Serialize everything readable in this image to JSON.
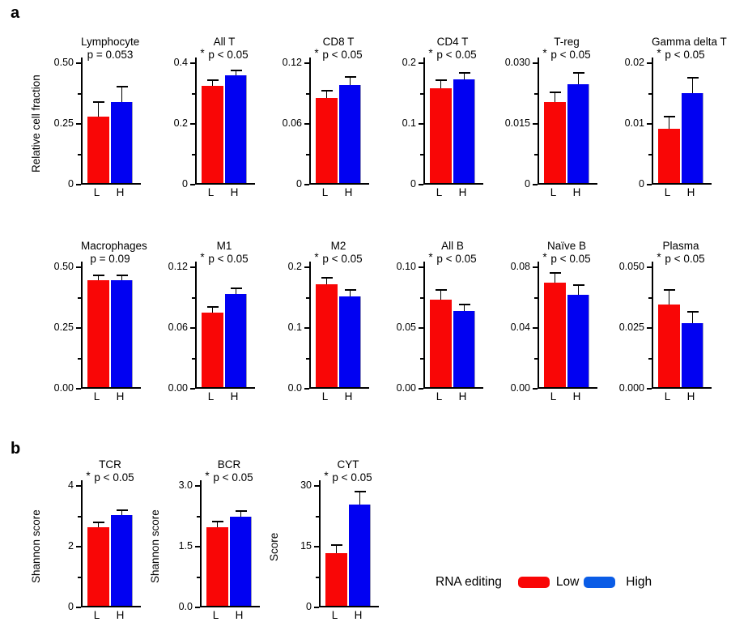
{
  "figure": {
    "panel_a_label": "a",
    "panel_b_label": "b"
  },
  "style": {
    "low_bar_color": "#f90606",
    "high_bar_color": "#0101f2",
    "legend_low_color": "#f90606",
    "legend_high_color": "#0a5ce6",
    "axis_color": "#000000"
  },
  "legend": {
    "title": "RNA editing",
    "items": [
      {
        "label": "Low",
        "color": "#f90606"
      },
      {
        "label": "High",
        "color": "#0a5ce6"
      }
    ]
  },
  "chart_data": [
    {
      "panel": "a",
      "row": 1,
      "type": "bar",
      "title": "Lymphocyte",
      "sig_label": "p = 0.053",
      "sig_star": false,
      "ylabel": "Relative cell fraction",
      "ylim": [
        0,
        0.5
      ],
      "ytick_labels": [
        "0",
        "0.25",
        "0.50"
      ],
      "categories": [
        "L",
        "H"
      ],
      "group_names": [
        "Low",
        "High"
      ],
      "values": [
        0.275,
        0.335
      ],
      "errors": [
        0.06,
        0.062
      ]
    },
    {
      "panel": "a",
      "row": 1,
      "type": "bar",
      "title": "All T",
      "sig_label": "p < 0.05",
      "sig_star": true,
      "ylabel": "",
      "ylim": [
        0,
        0.4
      ],
      "ytick_labels": [
        "0",
        "0.2",
        "0.4"
      ],
      "categories": [
        "L",
        "H"
      ],
      "group_names": [
        "Low",
        "High"
      ],
      "values": [
        0.32,
        0.355
      ],
      "errors": [
        0.02,
        0.015
      ]
    },
    {
      "panel": "a",
      "row": 1,
      "type": "bar",
      "title": "CD8 T",
      "sig_label": "p < 0.05",
      "sig_star": true,
      "ylabel": "",
      "ylim": [
        0,
        0.12
      ],
      "ytick_labels": [
        "0",
        "0.06",
        "0.12"
      ],
      "categories": [
        "L",
        "H"
      ],
      "group_names": [
        "Low",
        "High"
      ],
      "values": [
        0.084,
        0.097
      ],
      "errors": [
        0.007,
        0.008
      ]
    },
    {
      "panel": "a",
      "row": 1,
      "type": "bar",
      "title": "CD4 T",
      "sig_label": "p < 0.05",
      "sig_star": true,
      "ylabel": "",
      "ylim": [
        0,
        0.2
      ],
      "ytick_labels": [
        "0",
        "0.1",
        "0.2"
      ],
      "categories": [
        "L",
        "H"
      ],
      "group_names": [
        "Low",
        "High"
      ],
      "values": [
        0.156,
        0.171
      ],
      "errors": [
        0.014,
        0.01
      ]
    },
    {
      "panel": "a",
      "row": 1,
      "type": "bar",
      "title": "T-reg",
      "sig_label": "p < 0.05",
      "sig_star": true,
      "ylabel": "",
      "ylim": [
        0,
        0.03
      ],
      "ytick_labels": [
        "0",
        "0.015",
        "0.030"
      ],
      "categories": [
        "L",
        "H"
      ],
      "group_names": [
        "Low",
        "High"
      ],
      "values": [
        0.02,
        0.0245
      ],
      "errors": [
        0.0025,
        0.0027
      ]
    },
    {
      "panel": "a",
      "row": 1,
      "type": "bar",
      "title": "Gamma delta T",
      "sig_label": "p < 0.05",
      "sig_star": true,
      "ylabel": "",
      "ylim": [
        0,
        0.02
      ],
      "ytick_labels": [
        "0",
        "0.01",
        "0.02"
      ],
      "categories": [
        "L",
        "H"
      ],
      "group_names": [
        "Low",
        "High"
      ],
      "values": [
        0.009,
        0.0148
      ],
      "errors": [
        0.002,
        0.0026
      ]
    },
    {
      "panel": "a",
      "row": 2,
      "type": "bar",
      "title": "Macrophages",
      "sig_label": "p = 0.09",
      "sig_star": false,
      "ylabel": "",
      "ylim": [
        0,
        0.5
      ],
      "ytick_labels": [
        "0.00",
        "0.25",
        "0.50"
      ],
      "categories": [
        "L",
        "H"
      ],
      "group_names": [
        "Low",
        "High"
      ],
      "values": [
        0.44,
        0.44
      ],
      "errors": [
        0.019,
        0.019
      ]
    },
    {
      "panel": "a",
      "row": 2,
      "type": "bar",
      "title": "M1",
      "sig_label": "p < 0.05",
      "sig_star": true,
      "ylabel": "",
      "ylim": [
        0,
        0.12
      ],
      "ytick_labels": [
        "0.00",
        "0.06",
        "0.12"
      ],
      "categories": [
        "L",
        "H"
      ],
      "group_names": [
        "Low",
        "High"
      ],
      "values": [
        0.074,
        0.092
      ],
      "errors": [
        0.005,
        0.006
      ]
    },
    {
      "panel": "a",
      "row": 2,
      "type": "bar",
      "title": "M2",
      "sig_label": "p < 0.05",
      "sig_star": true,
      "ylabel": "",
      "ylim": [
        0,
        0.2
      ],
      "ytick_labels": [
        "0.0",
        "0.1",
        "0.2"
      ],
      "categories": [
        "L",
        "H"
      ],
      "group_names": [
        "Low",
        "High"
      ],
      "values": [
        0.17,
        0.15
      ],
      "errors": [
        0.01,
        0.01
      ]
    },
    {
      "panel": "a",
      "row": 2,
      "type": "bar",
      "title": "All B",
      "sig_label": "p < 0.05",
      "sig_star": true,
      "ylabel": "",
      "ylim": [
        0,
        0.1
      ],
      "ytick_labels": [
        "0.00",
        "0.05",
        "0.10"
      ],
      "categories": [
        "L",
        "H"
      ],
      "group_names": [
        "Low",
        "High"
      ],
      "values": [
        0.072,
        0.063
      ],
      "errors": [
        0.008,
        0.005
      ]
    },
    {
      "panel": "a",
      "row": 2,
      "type": "bar",
      "title": "Naïve B",
      "sig_label": "p < 0.05",
      "sig_star": true,
      "ylabel": "",
      "ylim": [
        0,
        0.08
      ],
      "ytick_labels": [
        "0.00",
        "0.04",
        "0.08"
      ],
      "categories": [
        "L",
        "H"
      ],
      "group_names": [
        "Low",
        "High"
      ],
      "values": [
        0.069,
        0.061
      ],
      "errors": [
        0.006,
        0.006
      ]
    },
    {
      "panel": "a",
      "row": 2,
      "type": "bar",
      "title": "Plasma",
      "sig_label": "p < 0.05",
      "sig_star": true,
      "ylabel": "",
      "ylim": [
        0,
        0.05
      ],
      "ytick_labels": [
        "0.000",
        "0.025",
        "0.050"
      ],
      "categories": [
        "L",
        "H"
      ],
      "group_names": [
        "Low",
        "High"
      ],
      "values": [
        0.034,
        0.0265
      ],
      "errors": [
        0.006,
        0.0046
      ]
    },
    {
      "panel": "b",
      "row": 3,
      "type": "bar",
      "title": "TCR",
      "sig_label": "p < 0.05",
      "sig_star": true,
      "ylabel": "Shannon score",
      "ylim": [
        0,
        4
      ],
      "ytick_labels": [
        "0",
        "2",
        "4"
      ],
      "categories": [
        "L",
        "H"
      ],
      "group_names": [
        "Low",
        "High"
      ],
      "values": [
        2.6,
        3.0
      ],
      "errors": [
        0.15,
        0.16
      ]
    },
    {
      "panel": "b",
      "row": 3,
      "type": "bar",
      "title": "BCR",
      "sig_label": "p < 0.05",
      "sig_star": true,
      "ylabel": "Shannon score",
      "ylim": [
        0,
        3
      ],
      "ytick_labels": [
        "0.0",
        "1.5",
        "3.0"
      ],
      "categories": [
        "L",
        "H"
      ],
      "group_names": [
        "Low",
        "High"
      ],
      "values": [
        1.95,
        2.2
      ],
      "errors": [
        0.14,
        0.15
      ]
    },
    {
      "panel": "b",
      "row": 3,
      "type": "bar",
      "title": "CYT",
      "sig_label": "p < 0.05",
      "sig_star": true,
      "ylabel": "Score",
      "ylim": [
        0,
        30
      ],
      "ytick_labels": [
        "0",
        "15",
        "30"
      ],
      "categories": [
        "L",
        "H"
      ],
      "group_names": [
        "Low",
        "High"
      ],
      "values": [
        13,
        25
      ],
      "errors": [
        2,
        3.3
      ]
    }
  ]
}
